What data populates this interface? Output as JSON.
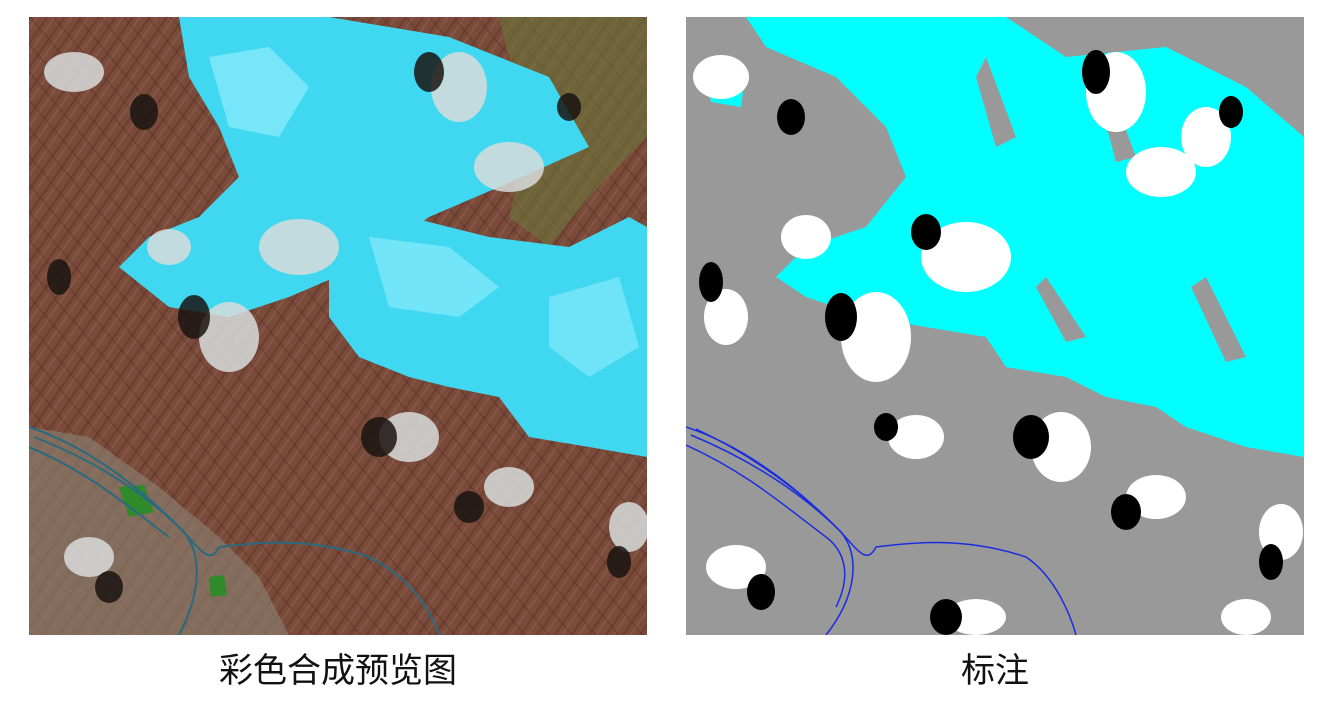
{
  "captions": {
    "left": "彩色合成预览图",
    "right": "标注"
  },
  "colors": {
    "terrain": "#7a4a3a",
    "terrain_dark": "#5c3528",
    "terrain_light": "#9a6a58",
    "valley": "#8a8070",
    "vegetation": "#6a7a3a",
    "ice_preview": "#3fd8f0",
    "ice_light": "#9ff0ff",
    "cloud_preview": "#d8dcdc",
    "shadow_preview": "#1a1412",
    "river_preview": "#2a6a80",
    "green_field": "#2f8a2a",
    "label_background": "#999999",
    "label_snow_ice": "#00ffff",
    "label_cloud": "#ffffff",
    "label_shadow": "#000000",
    "label_water": "#1a2ee0"
  }
}
